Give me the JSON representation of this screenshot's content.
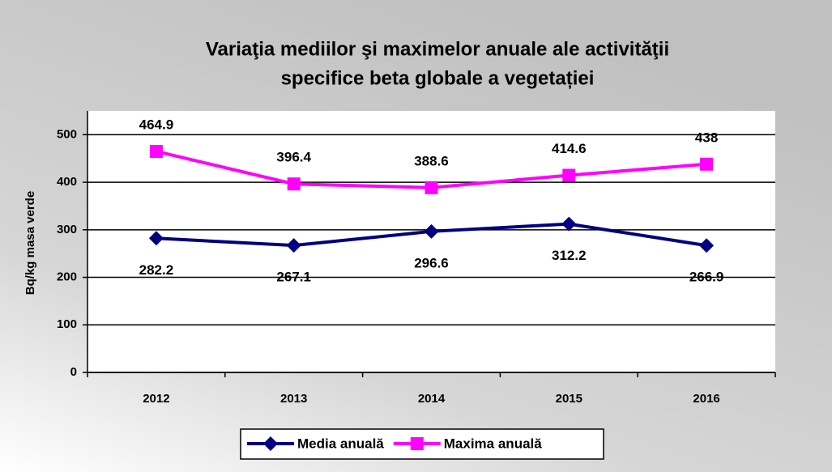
{
  "chart_data": {
    "type": "line",
    "title": [
      "Variaţia mediilor şi maximelor anuale ale activităţii",
      "specifice beta globale a vegetației"
    ],
    "ylabel": "Bq/kg masa verde",
    "categories": [
      "2012",
      "2013",
      "2014",
      "2015",
      "2016"
    ],
    "series": [
      {
        "name": "Media anuală",
        "color": "#000080",
        "marker": "diamond",
        "values": [
          282.2,
          267.1,
          296.6,
          312.2,
          266.9
        ]
      },
      {
        "name": "Maxima anuală",
        "color": "#ff00ff",
        "marker": "square",
        "values": [
          464.9,
          396.4,
          388.6,
          414.6,
          438
        ]
      }
    ],
    "ylim": [
      0,
      550
    ],
    "yticks": [
      0,
      100,
      200,
      300,
      400,
      500
    ],
    "grid": true,
    "legend": "bottom"
  }
}
